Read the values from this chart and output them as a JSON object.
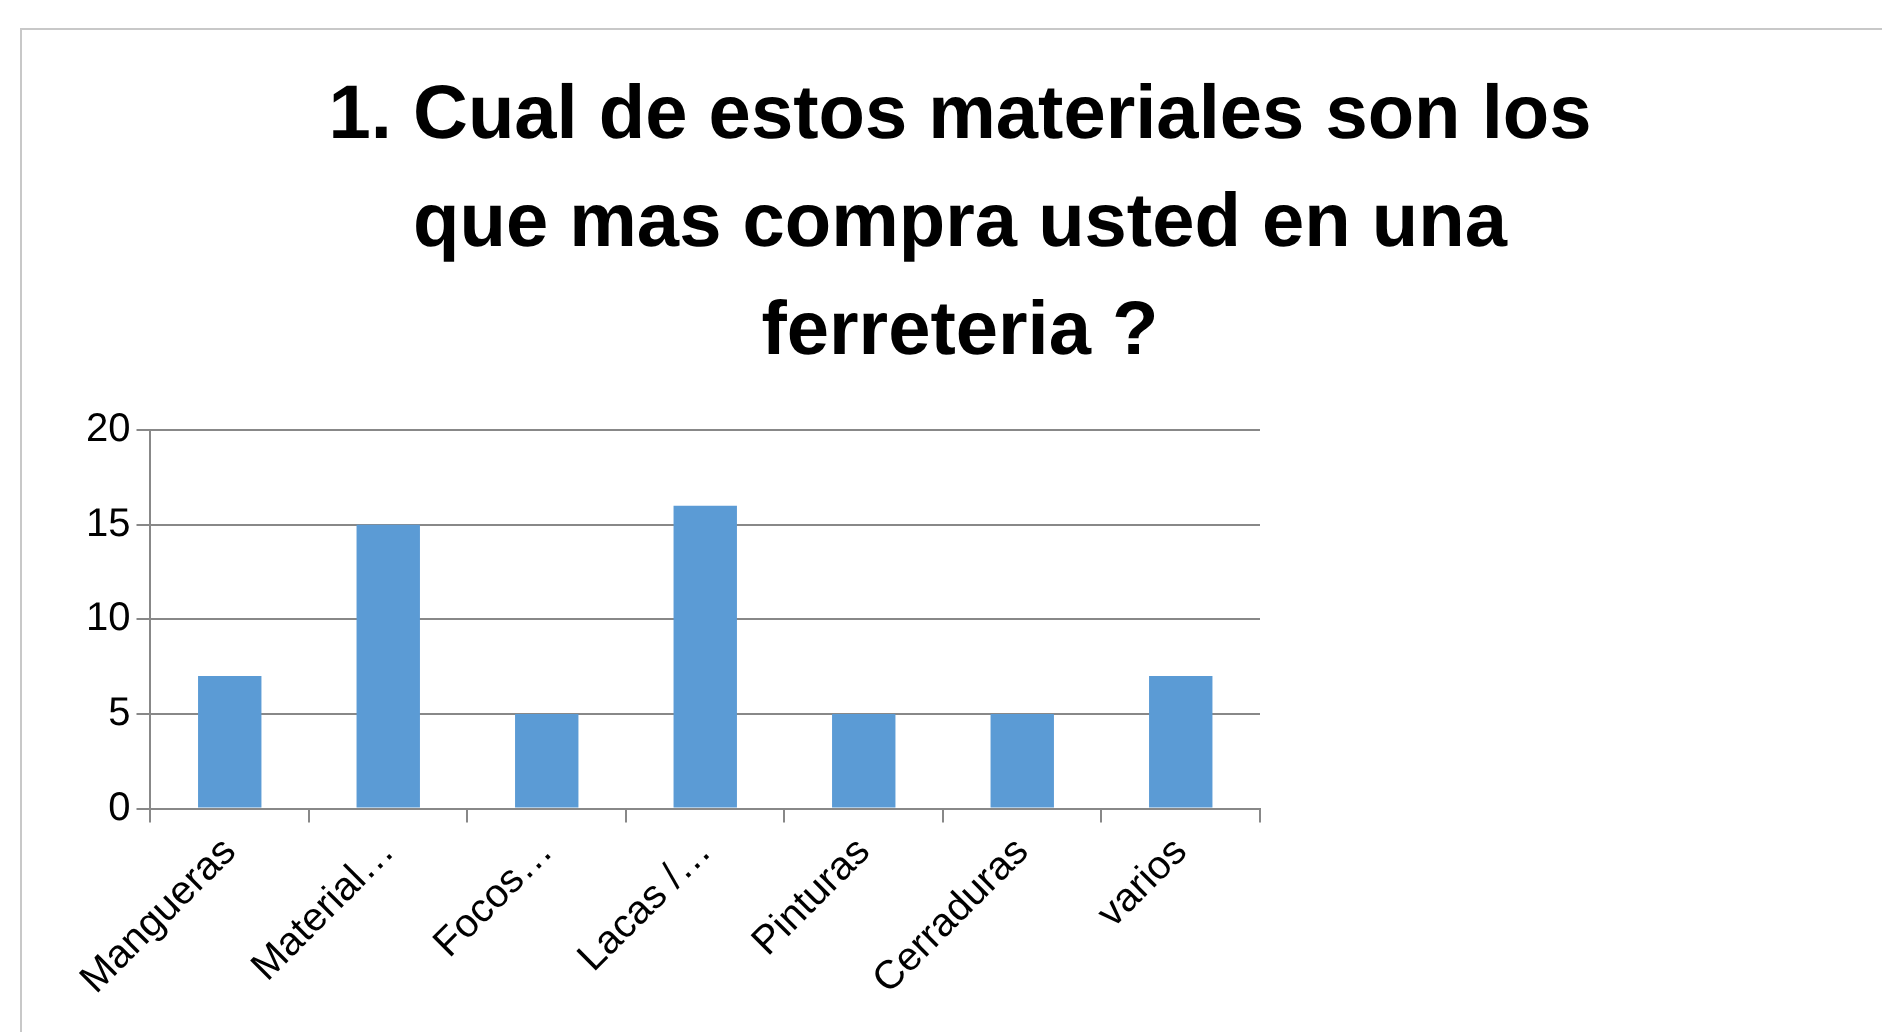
{
  "chart_data": {
    "type": "bar",
    "title": "1. Cual de estos materiales son los que mas compra usted en una ferreteria ?",
    "categories": [
      "Mangueras",
      "Material…",
      "Focos…",
      "Lacas /…",
      "Pinturas",
      "Cerraduras",
      "varios"
    ],
    "values": [
      7,
      15,
      5,
      16,
      5,
      5,
      7
    ],
    "color": "#5b9bd5",
    "ylim": [
      0,
      20
    ],
    "yticks": [
      0,
      5,
      10,
      15,
      20
    ],
    "grid": "y"
  }
}
